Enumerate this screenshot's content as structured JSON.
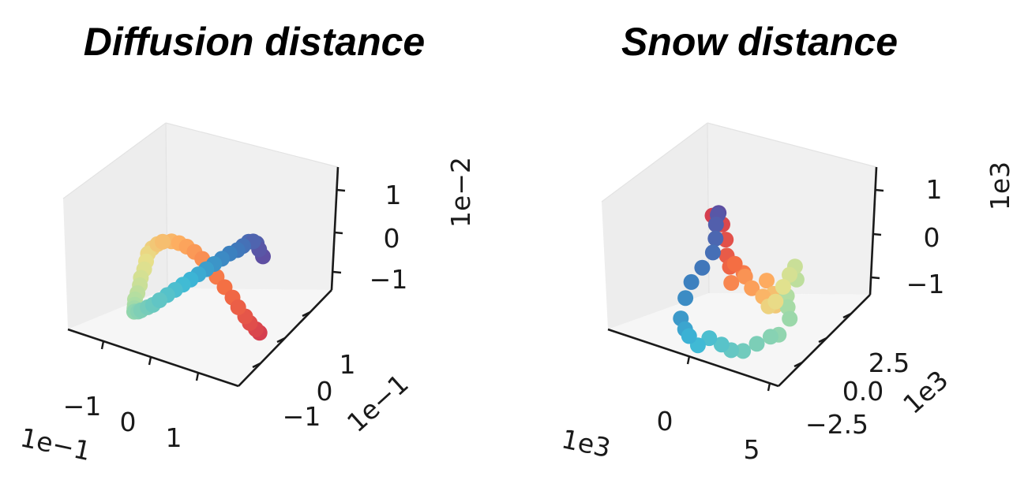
{
  "chart_data": [
    {
      "type": "scatter",
      "projection": "3d",
      "title": "Diffusion distance",
      "grid": false,
      "x_ticks": [
        "−1",
        "0",
        "1"
      ],
      "y_ticks": [
        "−1",
        "0",
        "1"
      ],
      "z_ticks": [
        "−1",
        "0",
        "1"
      ],
      "x_offset": "1e−1",
      "y_offset": "1e−1",
      "z_offset": "1e−2",
      "xlim": [
        -1.9,
        1.9
      ],
      "ylim": [
        -1.9,
        1.9
      ],
      "zlim": [
        -1.9,
        1.9
      ],
      "colormap": "Spectral",
      "series": [
        {
          "color_note": "points colored by order along curve (red → orange → yellow → green → cyan → blue → purple)",
          "x": [
            1.4,
            1.35,
            1.25,
            1.15,
            1.0,
            0.85,
            0.65,
            0.45,
            0.25,
            0.05,
            -0.15,
            -0.35,
            -0.55,
            -0.75,
            -0.95,
            -1.1,
            -1.25,
            -1.35,
            -1.4,
            -1.45,
            -1.5,
            -1.5,
            -1.5,
            -1.5,
            -1.45,
            -1.4,
            -1.35,
            -1.3,
            -1.2,
            -1.1,
            -0.95,
            -0.8,
            -0.65,
            -0.5,
            -0.35,
            -0.2,
            -0.05,
            0.1,
            0.25,
            0.4,
            0.55,
            0.7,
            0.85,
            0.95,
            1.05,
            1.15,
            1.2,
            1.25,
            1.3
          ],
          "y": [
            -0.2,
            -0.25,
            -0.3,
            -0.3,
            -0.3,
            -0.25,
            -0.2,
            -0.15,
            -0.05,
            0.0,
            0.05,
            0.1,
            0.15,
            0.2,
            0.2,
            0.25,
            0.3,
            0.3,
            0.3,
            0.3,
            0.25,
            0.2,
            0.1,
            0.0,
            -0.1,
            -0.2,
            -0.3,
            -0.35,
            -0.4,
            -0.45,
            -0.45,
            -0.5,
            -0.5,
            -0.45,
            -0.4,
            -0.35,
            -0.3,
            -0.25,
            -0.2,
            -0.15,
            -0.1,
            -0.05,
            0.0,
            0.05,
            0.1,
            0.1,
            0.15,
            0.15,
            0.2
          ],
          "z": [
            -1.1,
            -1.0,
            -0.85,
            -0.7,
            -0.5,
            -0.3,
            -0.1,
            0.1,
            0.25,
            0.4,
            0.5,
            0.55,
            0.55,
            0.5,
            0.4,
            0.25,
            0.05,
            -0.15,
            -0.4,
            -0.65,
            -0.9,
            -1.1,
            -1.3,
            -1.45,
            -1.55,
            -1.6,
            -1.65,
            -1.6,
            -1.55,
            -1.45,
            -1.3,
            -1.15,
            -0.95,
            -0.75,
            -0.55,
            -0.35,
            -0.15,
            0.05,
            0.25,
            0.45,
            0.65,
            0.85,
            1.0,
            1.15,
            1.3,
            1.35,
            1.3,
            1.15,
            0.95
          ]
        }
      ]
    },
    {
      "type": "scatter",
      "projection": "3d",
      "title": "Snow distance",
      "grid": false,
      "x_ticks": [
        "0",
        "5"
      ],
      "y_ticks": [
        "−2.5",
        "0.0",
        "2.5"
      ],
      "z_ticks": [
        "−1",
        "0",
        "1"
      ],
      "x_offset": "1e3",
      "y_offset": "1e3",
      "z_offset": "1e3",
      "xlim": [
        -6,
        8
      ],
      "ylim": [
        -4.5,
        4.5
      ],
      "zlim": [
        -1.6,
        1.6
      ],
      "colormap": "Spectral",
      "series": [
        {
          "color_note": "points colored by order along curve (red → orange → yellow → green → cyan → blue → purple)",
          "x": [
            -3.0,
            -2.5,
            -2.0,
            -1.5,
            -1.0,
            -0.2,
            0.3,
            0.0,
            0.8,
            1.5,
            2.2,
            2.5,
            3.1,
            3.6,
            3.4,
            4.1,
            4.6,
            4.9,
            5.1,
            4.8,
            4.4,
            4.8,
            5.3,
            4.8,
            4.2,
            3.5,
            2.8,
            2.2,
            1.6,
            0.8,
            0.2,
            -0.3,
            -0.8,
            -1.3,
            -1.6,
            -1.8,
            -1.6,
            -1.5,
            -1.6,
            -1.8,
            -1.9,
            -2.1
          ],
          "y": [
            2.0,
            2.3,
            2.0,
            1.5,
            1.2,
            0.8,
            1.0,
            0.2,
            0.6,
            0.4,
            1.0,
            0.3,
            0.6,
            0.2,
            -0.2,
            -0.3,
            -0.1,
            0.2,
            0.5,
            0.9,
            0.4,
            0.0,
            -0.4,
            -0.9,
            -1.0,
            -1.5,
            -2.0,
            -2.4,
            -2.6,
            -2.8,
            -3.2,
            -3.4,
            -3.2,
            -3.0,
            -2.2,
            -1.4,
            -0.6,
            0.3,
            0.7,
            1.0,
            1.3,
            1.6
          ],
          "z": [
            0.9,
            0.7,
            0.4,
            0.1,
            -0.1,
            0.1,
            -0.1,
            -0.3,
            -0.1,
            -0.3,
            -0.1,
            -0.4,
            -0.3,
            -0.5,
            -0.5,
            -0.3,
            0.1,
            0.4,
            0.6,
            0.2,
            -0.2,
            -0.4,
            -0.6,
            -1.0,
            -1.1,
            -1.3,
            -1.5,
            -1.5,
            -1.4,
            -1.3,
            -1.5,
            -1.3,
            -1.2,
            -1.0,
            -0.6,
            -0.3,
            0.0,
            0.3,
            0.6,
            0.9,
            1.1,
            1.1
          ]
        }
      ]
    }
  ]
}
